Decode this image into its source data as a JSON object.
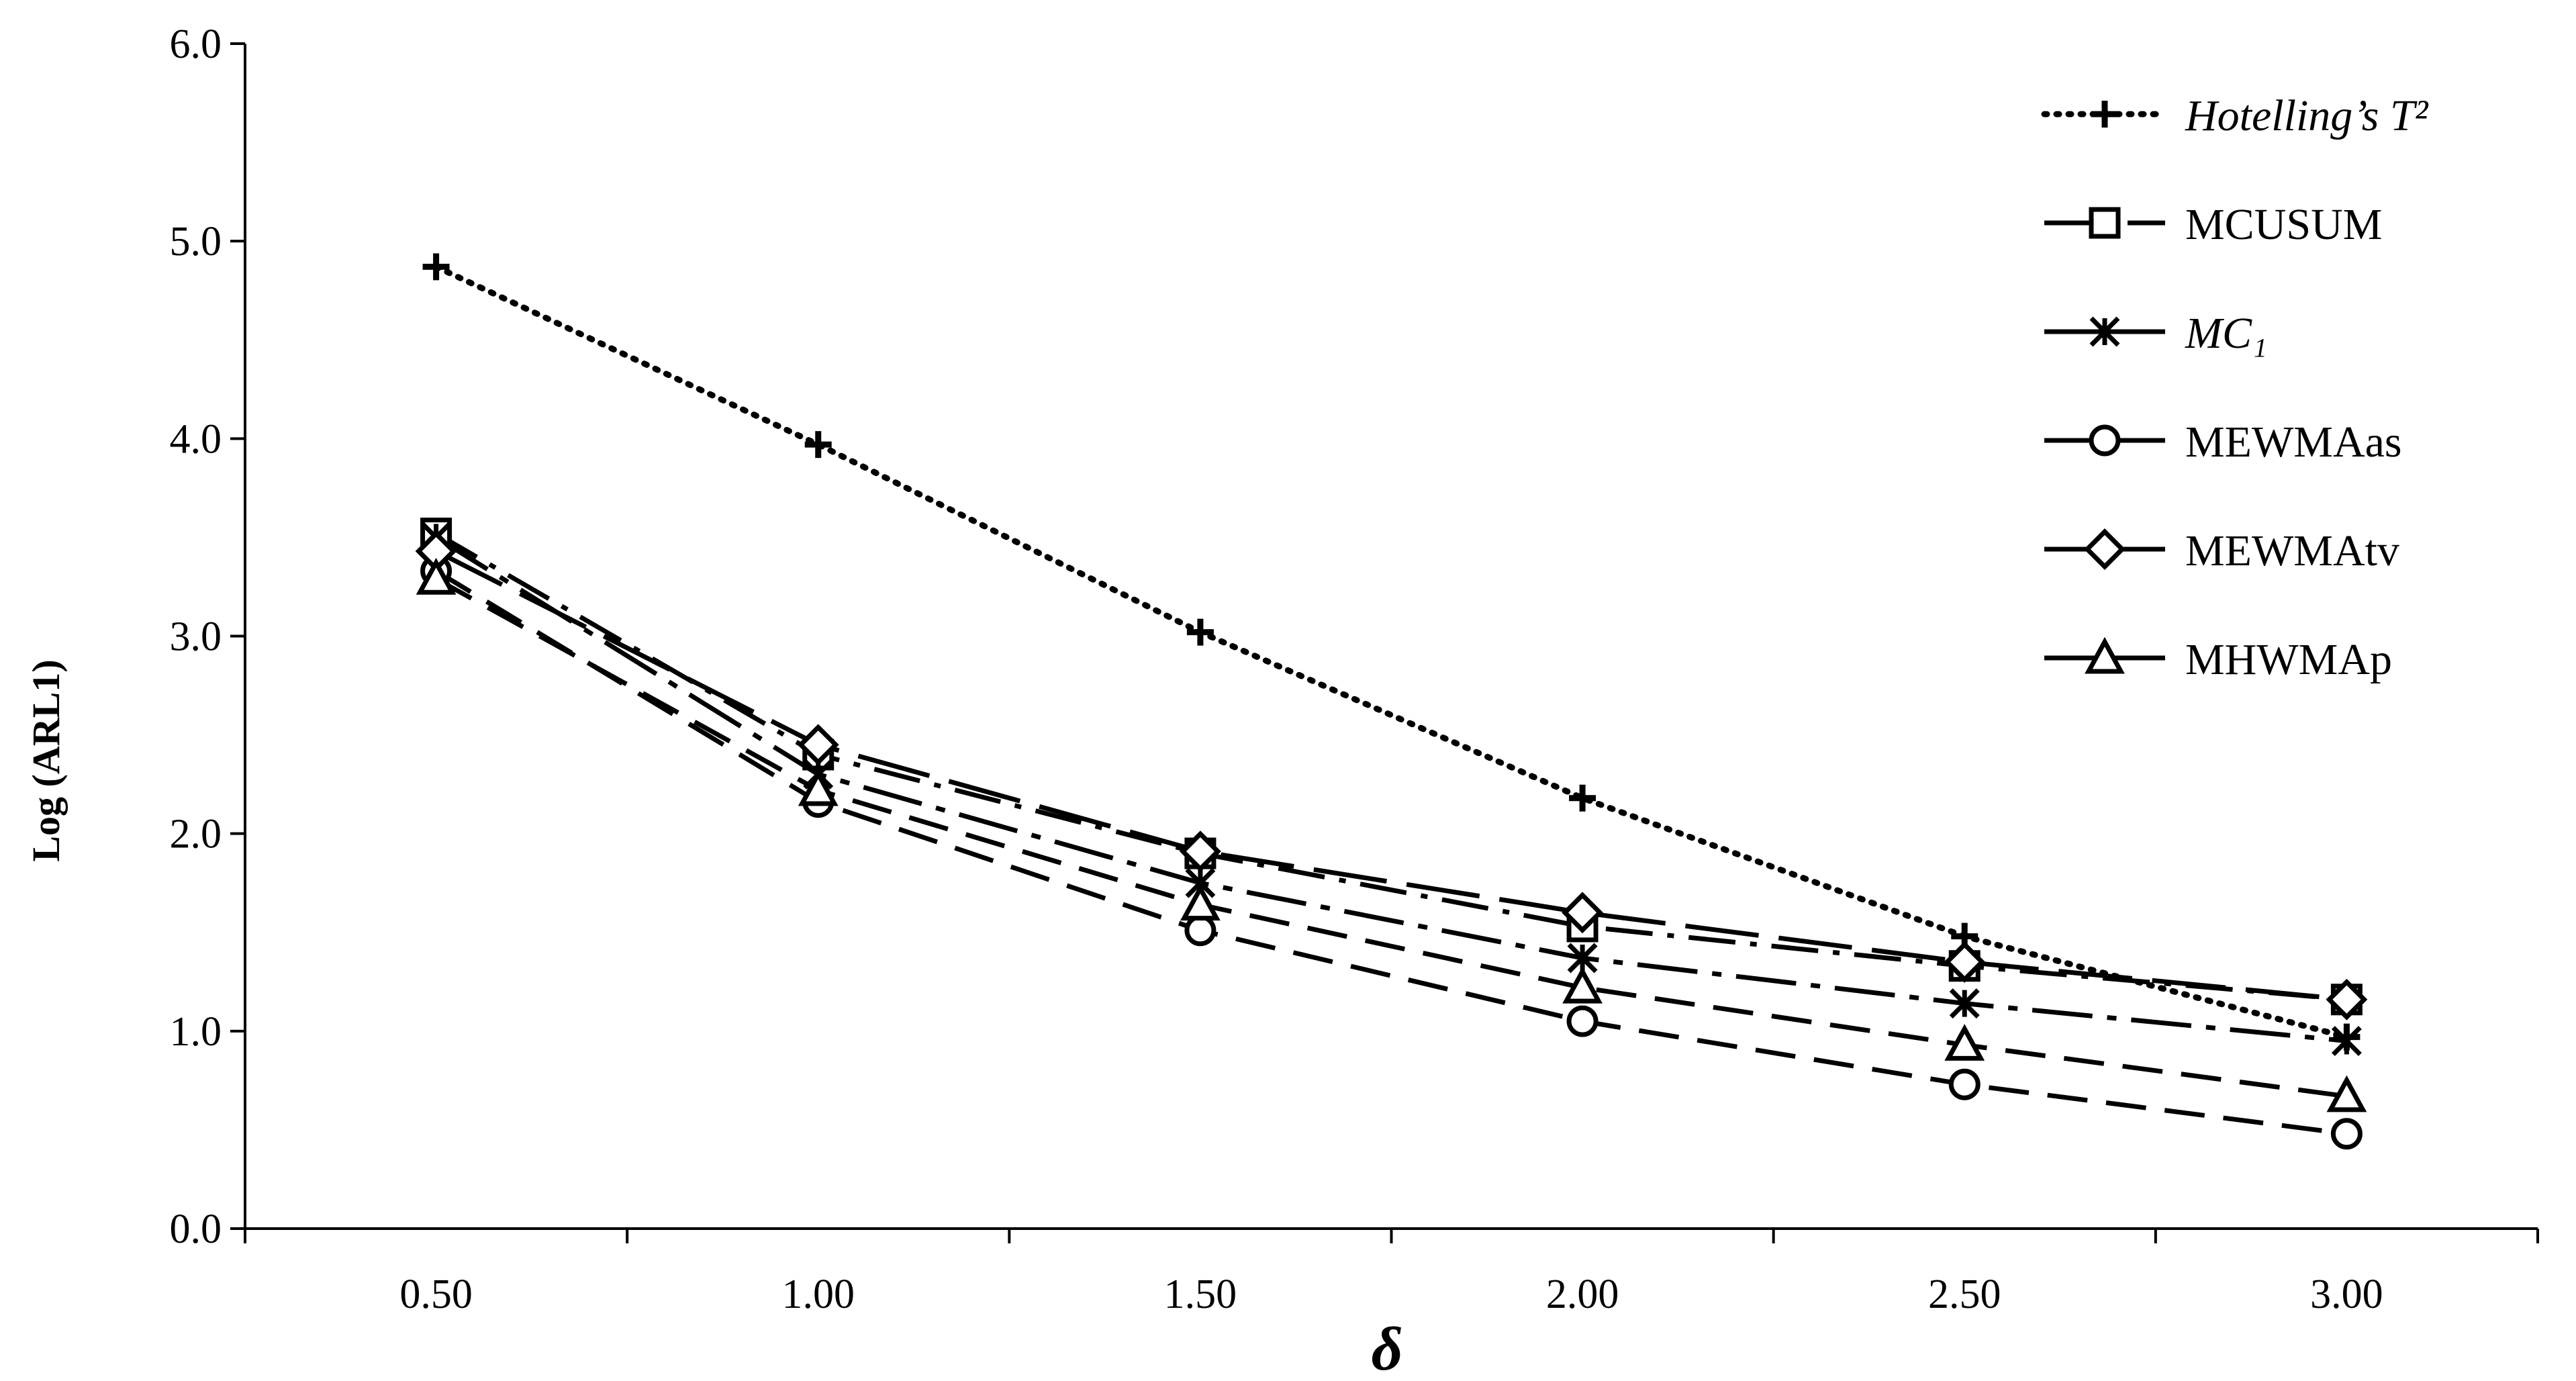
{
  "chart_data": {
    "type": "line",
    "title": "",
    "xlabel": "δ",
    "ylabel": "Log (ARL1)",
    "categories": [
      "0.50",
      "1.00",
      "1.50",
      "2.00",
      "2.50",
      "3.00"
    ],
    "ylim": [
      0,
      6
    ],
    "yticks": [
      "0.0",
      "1.0",
      "2.0",
      "3.0",
      "4.0",
      "5.0",
      "6.0"
    ],
    "grid": false,
    "legend_position": "top-right",
    "series": [
      {
        "name": "Hotelling’s T²",
        "italic": true,
        "marker": "plus-icon",
        "dash": "dotted",
        "values": [
          4.87,
          3.97,
          3.02,
          2.18,
          1.48,
          0.97
        ]
      },
      {
        "name": "MCUSUM",
        "italic": false,
        "marker": "square-icon",
        "dash": "dash-dot",
        "values": [
          3.52,
          2.4,
          1.9,
          1.53,
          1.33,
          1.16
        ]
      },
      {
        "name": "MC₁",
        "italic": true,
        "marker": "asterisk-icon",
        "dash": "long-dash-dot",
        "values": [
          3.5,
          2.3,
          1.75,
          1.37,
          1.14,
          0.95
        ]
      },
      {
        "name": "MEWMAas",
        "italic": false,
        "marker": "circle-icon",
        "dash": "dashed",
        "values": [
          3.33,
          2.16,
          1.51,
          1.05,
          0.73,
          0.48
        ]
      },
      {
        "name": "MEWMAtv",
        "italic": false,
        "marker": "diamond-icon",
        "dash": "long-dash",
        "values": [
          3.43,
          2.45,
          1.91,
          1.6,
          1.35,
          1.16
        ]
      },
      {
        "name": "MHWMAp",
        "italic": false,
        "marker": "triangle-icon",
        "dash": "dashed",
        "values": [
          3.29,
          2.22,
          1.64,
          1.22,
          0.93,
          0.67
        ]
      }
    ]
  }
}
